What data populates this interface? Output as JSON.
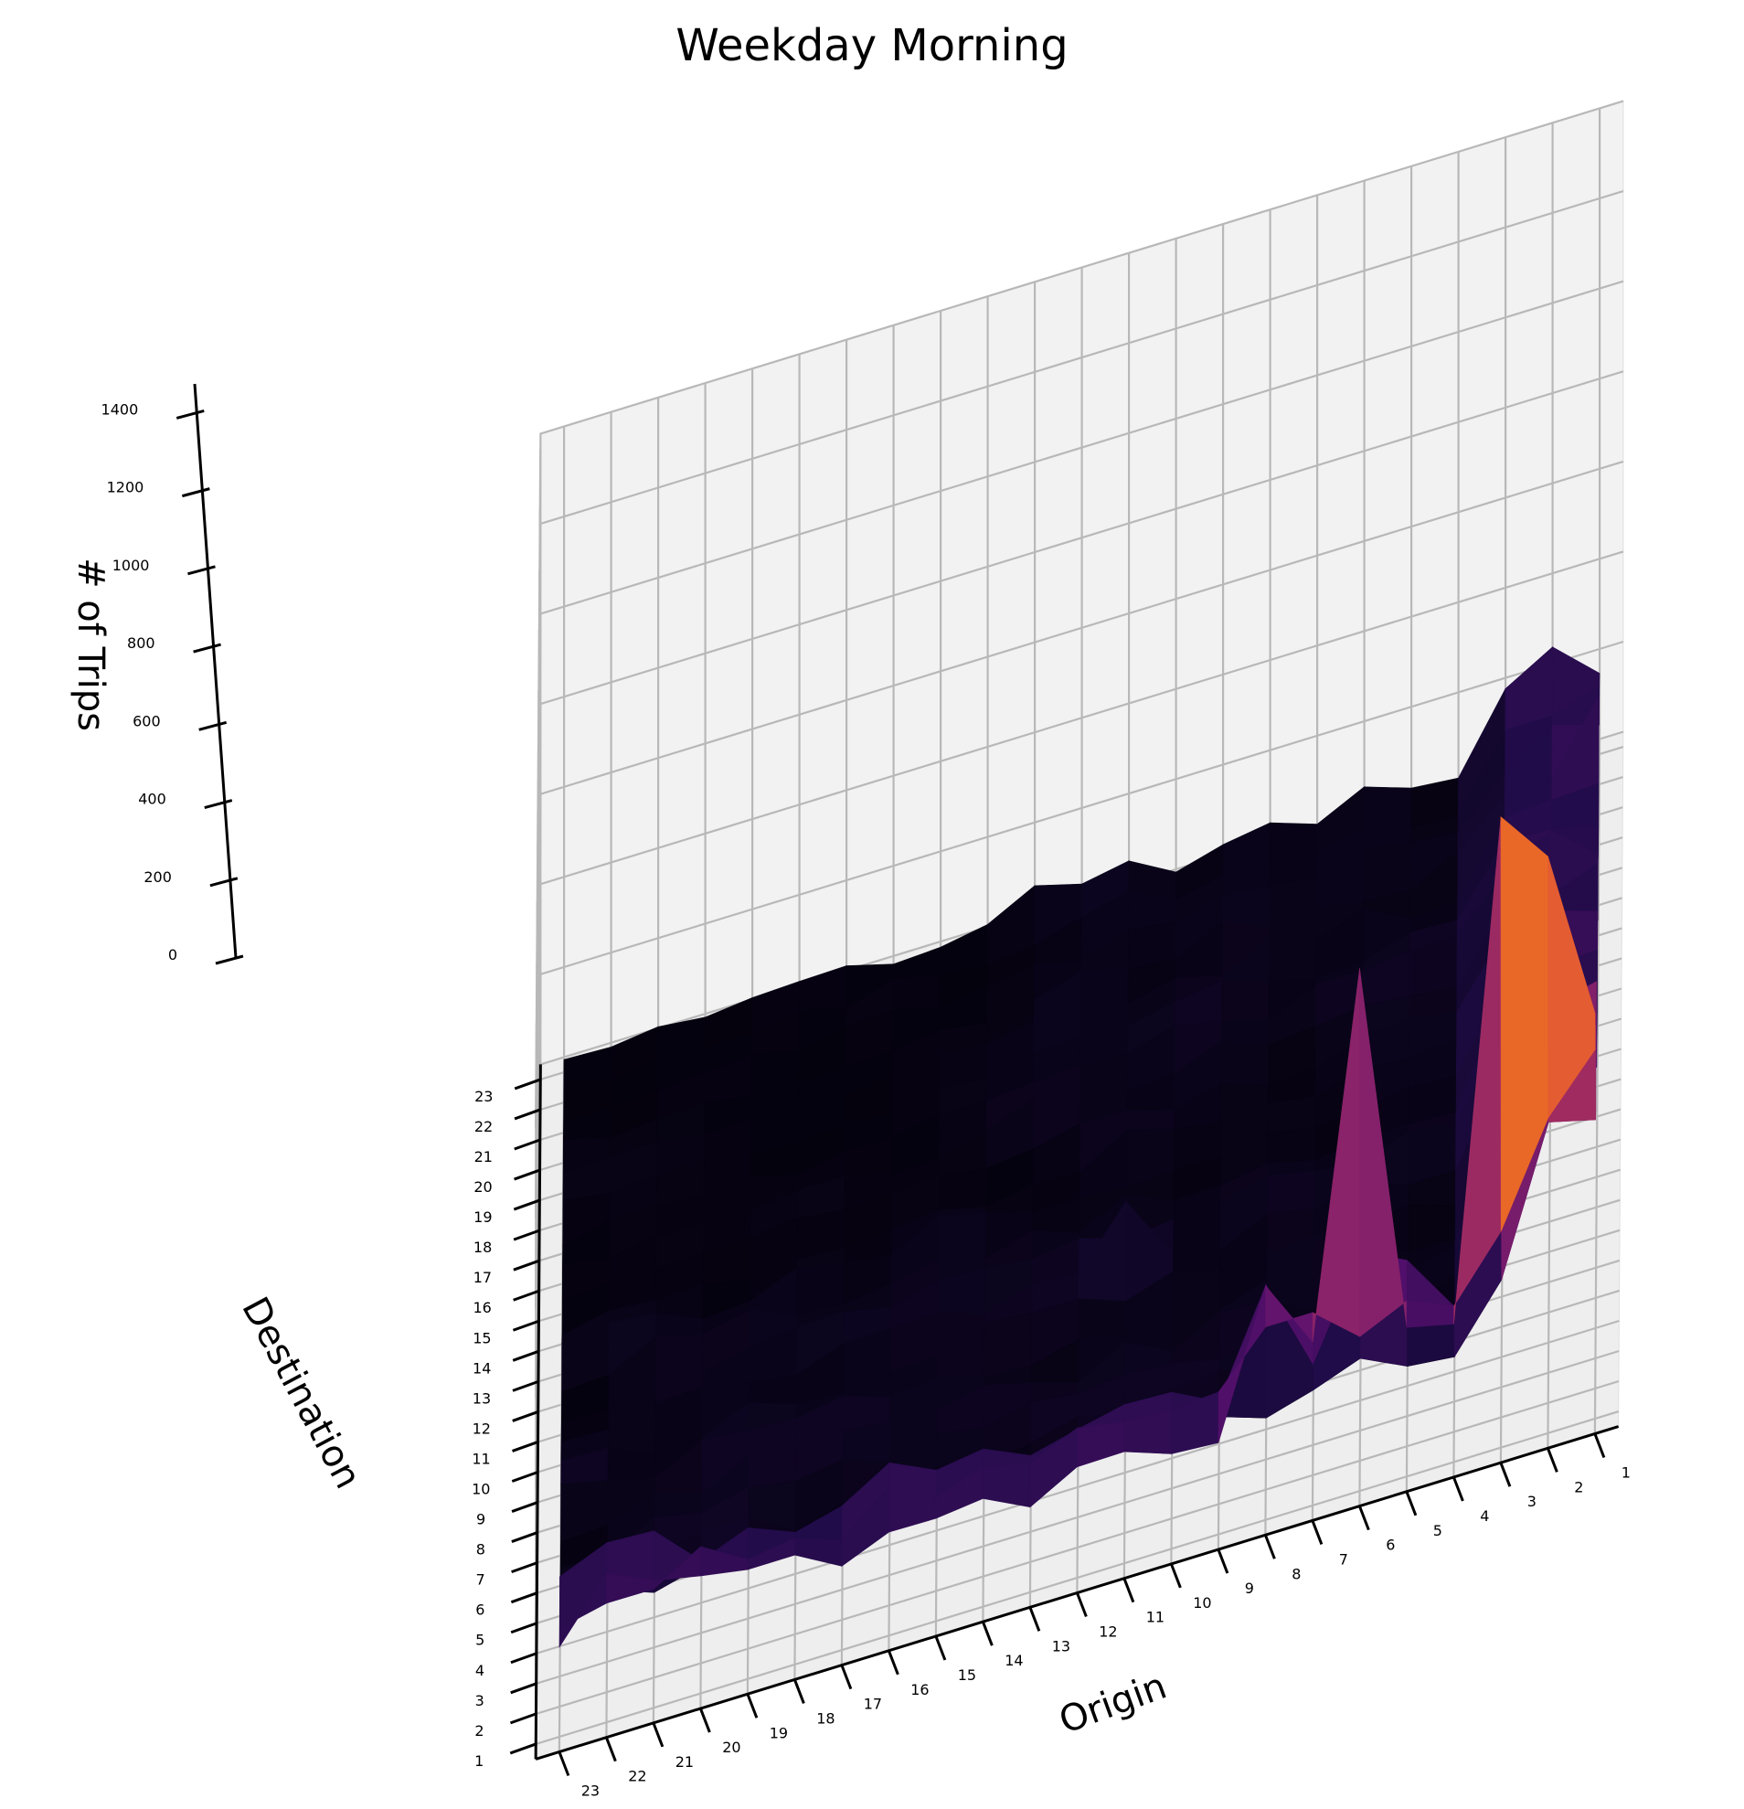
{
  "chart_data": {
    "type": "surface3d",
    "title": "Weekday Morning",
    "xlabel": "Origin",
    "ylabel": "Destination",
    "zlabel": "# of Trips",
    "origin_ticks": [
      "1",
      "2",
      "3",
      "4",
      "5",
      "6",
      "7",
      "8",
      "9",
      "10",
      "11",
      "12",
      "13",
      "14",
      "15",
      "16",
      "17",
      "18",
      "19",
      "20",
      "21",
      "22",
      "23"
    ],
    "destination_ticks": [
      "1",
      "2",
      "3",
      "4",
      "5",
      "6",
      "7",
      "8",
      "9",
      "10",
      "11",
      "12",
      "13",
      "14",
      "15",
      "16",
      "17",
      "18",
      "19",
      "20",
      "21",
      "22",
      "23"
    ],
    "z_ticks": [
      0,
      200,
      400,
      600,
      800,
      1000,
      1200,
      1400
    ],
    "zlim": [
      0,
      1400
    ],
    "colormap": "inferno",
    "grid": true,
    "notable_values": [
      {
        "origin": 3,
        "destination": 1,
        "trips": 1400
      },
      {
        "origin": 2,
        "destination": 1,
        "trips": 1280
      },
      {
        "origin": 6,
        "destination": 1,
        "trips": 1160
      },
      {
        "origin": 1,
        "destination": 1,
        "trips": 900
      },
      {
        "origin": 8,
        "destination": 1,
        "trips": 520
      },
      {
        "origin": 22,
        "destination": 1,
        "trips": 330
      },
      {
        "origin": 1,
        "destination": 20,
        "trips": 330
      },
      {
        "origin": 11,
        "destination": 10,
        "trips": 200
      }
    ]
  }
}
